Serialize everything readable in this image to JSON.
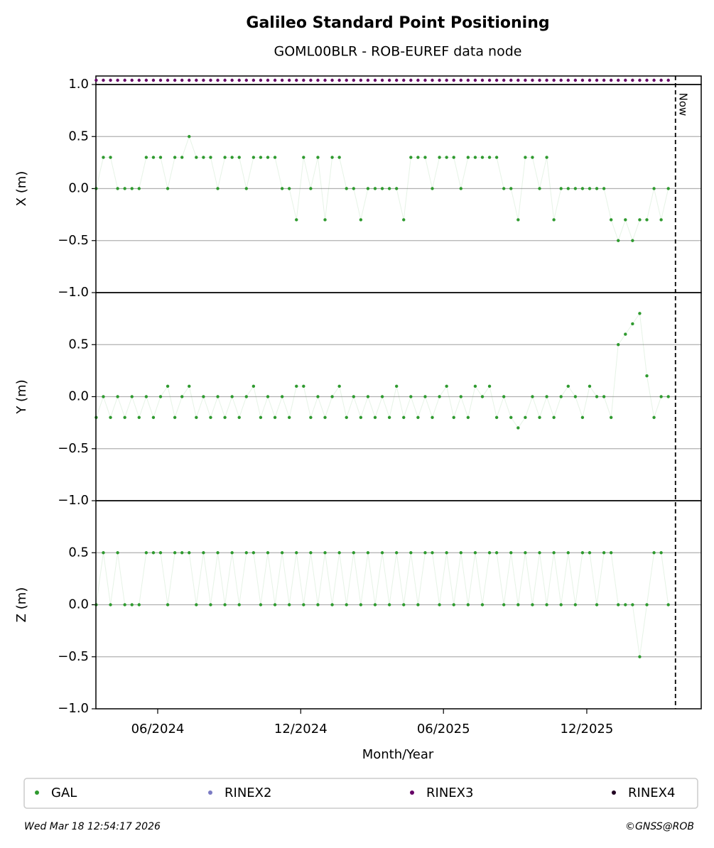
{
  "chart_data": {
    "type": "line",
    "title": "Galileo Standard Point Positioning",
    "subtitle": "GOML00BLR - ROB-EUREF data node",
    "xlabel": "Month/Year",
    "xlim": [
      2024.199,
      2026.315
    ],
    "xticks": [
      {
        "value": 2024.415,
        "label": "06/2024"
      },
      {
        "value": 2024.915,
        "label": "12/2024"
      },
      {
        "value": 2025.414,
        "label": "06/2025"
      },
      {
        "value": 2025.915,
        "label": "12/2025"
      }
    ],
    "now": {
      "value": 2026.225,
      "label": "Now"
    },
    "x": [
      2024.2,
      2024.225,
      2024.25,
      2024.275,
      2024.3,
      2024.325,
      2024.35,
      2024.375,
      2024.4,
      2024.425,
      2024.45,
      2024.475,
      2024.5,
      2024.525,
      2024.55,
      2024.575,
      2024.6,
      2024.625,
      2024.65,
      2024.675,
      2024.7,
      2024.725,
      2024.75,
      2024.775,
      2024.8,
      2024.825,
      2024.85,
      2024.875,
      2024.9,
      2024.925,
      2024.95,
      2024.975,
      2025.0,
      2025.025,
      2025.05,
      2025.075,
      2025.1,
      2025.125,
      2025.15,
      2025.175,
      2025.2,
      2025.225,
      2025.25,
      2025.275,
      2025.3,
      2025.325,
      2025.35,
      2025.375,
      2025.4,
      2025.425,
      2025.45,
      2025.475,
      2025.5,
      2025.525,
      2025.55,
      2025.575,
      2025.6,
      2025.625,
      2025.65,
      2025.675,
      2025.7,
      2025.725,
      2025.75,
      2025.775,
      2025.8,
      2025.825,
      2025.85,
      2025.875,
      2025.9,
      2025.925,
      2025.95,
      2025.975,
      2026.0,
      2026.025,
      2026.05,
      2026.075,
      2026.1,
      2026.125,
      2026.15,
      2026.175,
      2026.2
    ],
    "strip_series": 2,
    "panels": [
      {
        "ylabel": "X (m)",
        "ylim": [
          -1,
          1
        ],
        "yticks": [
          {
            "value": -1,
            "label": "−1.0"
          },
          {
            "value": -0.5,
            "label": "−0.5"
          },
          {
            "value": 0,
            "label": "0.0"
          },
          0.5,
          {
            "value": 1,
            "label": "1.0"
          }
        ],
        "grid": [
          -0.5,
          0,
          0.5
        ],
        "series": [
          {
            "name": "GAL",
            "color": "#2f9a2f",
            "values": [
              0,
              0.3,
              0.3,
              0,
              0,
              0,
              0,
              0.3,
              0.3,
              0.3,
              0,
              0.3,
              0.3,
              0.5,
              0.3,
              0.3,
              0.3,
              0,
              0.3,
              0.3,
              0.3,
              0,
              0.3,
              0.3,
              0.3,
              0.3,
              0,
              0,
              -0.3,
              0.3,
              0,
              0.3,
              -0.3,
              0.3,
              0.3,
              0,
              0,
              -0.3,
              0,
              0,
              0,
              0,
              0,
              -0.3,
              0.3,
              0.3,
              0.3,
              0,
              0.3,
              0.3,
              0.3,
              0,
              0.3,
              0.3,
              0.3,
              0.3,
              0.3,
              0,
              0,
              -0.3,
              0.3,
              0.3,
              0,
              0.3,
              -0.3,
              0,
              0,
              0,
              0,
              0,
              0,
              0,
              -0.3,
              -0.5,
              -0.3,
              -0.5,
              -0.3,
              -0.3,
              0,
              -0.3,
              0
            ]
          }
        ]
      },
      {
        "ylabel": "Y (m)",
        "ylim": [
          -1,
          1
        ],
        "yticks": [
          {
            "value": -1,
            "label": "−1.0"
          },
          {
            "value": -0.5,
            "label": "−0.5"
          },
          {
            "value": 0,
            "label": "0.0"
          },
          0.5
        ],
        "grid": [
          -0.5,
          0,
          0.5
        ],
        "series": [
          {
            "name": "GAL",
            "color": "#2f9a2f",
            "values": [
              -0.2,
              0,
              -0.2,
              0,
              -0.2,
              0,
              -0.2,
              0,
              -0.2,
              0,
              0.1,
              -0.2,
              0,
              0.1,
              -0.2,
              0,
              -0.2,
              0,
              -0.2,
              0,
              -0.2,
              0,
              0.1,
              -0.2,
              0,
              -0.2,
              0,
              -0.2,
              0.1,
              0.1,
              -0.2,
              0,
              -0.2,
              0,
              0.1,
              -0.2,
              0,
              -0.2,
              0,
              -0.2,
              0,
              -0.2,
              0.1,
              -0.2,
              0,
              -0.2,
              0,
              -0.2,
              0,
              0.1,
              -0.2,
              0,
              -0.2,
              0.1,
              0,
              0.1,
              -0.2,
              0,
              -0.2,
              -0.3,
              -0.2,
              0,
              -0.2,
              0,
              -0.2,
              0,
              0.1,
              0,
              -0.2,
              0.1,
              0,
              0,
              -0.2,
              0.5,
              0.6,
              0.7,
              0.8,
              0.2,
              -0.2,
              0,
              0
            ]
          }
        ]
      },
      {
        "ylabel": "Z (m)",
        "ylim": [
          -1,
          1
        ],
        "yticks": [
          {
            "value": -1,
            "label": "−1.0"
          },
          {
            "value": -0.5,
            "label": "−0.5"
          },
          {
            "value": 0,
            "label": "0.0"
          },
          0.5
        ],
        "grid": [
          -0.5,
          0,
          0.5
        ],
        "series": [
          {
            "name": "GAL",
            "color": "#2f9a2f",
            "values": [
              0,
              0.5,
              0,
              0.5,
              0,
              0,
              0,
              0.5,
              0.5,
              0.5,
              0,
              0.5,
              0.5,
              0.5,
              0,
              0.5,
              0,
              0.5,
              0,
              0.5,
              0,
              0.5,
              0.5,
              0,
              0.5,
              0,
              0.5,
              0,
              0.5,
              0,
              0.5,
              0,
              0.5,
              0,
              0.5,
              0,
              0.5,
              0,
              0.5,
              0,
              0.5,
              0,
              0.5,
              0,
              0.5,
              0,
              0.5,
              0.5,
              0,
              0.5,
              0,
              0.5,
              0,
              0.5,
              0,
              0.5,
              0.5,
              0,
              0.5,
              0,
              0.5,
              0,
              0.5,
              0,
              0.5,
              0,
              0.5,
              0,
              0.5,
              0.5,
              0,
              0.5,
              0.5,
              0,
              0,
              0,
              -0.5,
              0,
              0.5,
              0.5,
              0
            ]
          }
        ]
      }
    ],
    "legend": [
      {
        "name": "GAL",
        "color": "#2f9a2f"
      },
      {
        "name": "RINEX2",
        "color": "#7b7bc4"
      },
      {
        "name": "RINEX3",
        "color": "#660066"
      },
      {
        "name": "RINEX4",
        "color": "#220022"
      }
    ],
    "footer_left": "Wed Mar 18 12:54:17 2026",
    "footer_right": "©GNSS@ROB"
  }
}
